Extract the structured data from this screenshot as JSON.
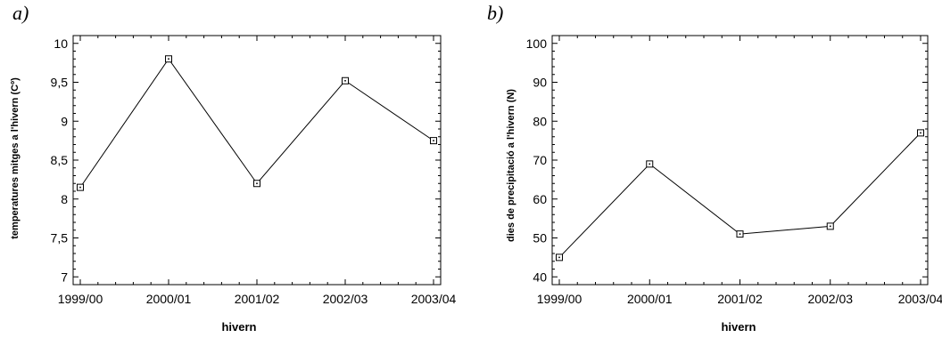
{
  "chart_data": [
    {
      "type": "line",
      "panel_label": "a)",
      "xlabel": "hivern",
      "ylabel": "temperatures mitges a l'hivern (Cº)",
      "categories": [
        "1999/00",
        "2000/01",
        "2001/02",
        "2002/03",
        "2003/04"
      ],
      "series": [
        {
          "values": [
            8.15,
            9.8,
            8.2,
            9.52,
            8.75
          ]
        }
      ],
      "ylim": [
        6.9,
        10.1
      ],
      "yticks": [
        7,
        7.5,
        8,
        8.5,
        9,
        9.5,
        10
      ],
      "ytick_labels": [
        "7",
        "7,5",
        "8",
        "8,5",
        "9",
        "9,5",
        "10"
      ],
      "marker": "square",
      "grid": false
    },
    {
      "type": "line",
      "panel_label": "b)",
      "xlabel": "hivern",
      "ylabel": "dies de precipitació a l'hivern (N)",
      "categories": [
        "1999/00",
        "2000/01",
        "2001/02",
        "2002/03",
        "2003/04"
      ],
      "series": [
        {
          "values": [
            45,
            69,
            51,
            53,
            77
          ]
        }
      ],
      "ylim": [
        38,
        102
      ],
      "yticks": [
        40,
        50,
        60,
        70,
        80,
        90,
        100
      ],
      "ytick_labels": [
        "40",
        "50",
        "60",
        "70",
        "80",
        "90",
        "100"
      ],
      "marker": "square",
      "grid": false
    }
  ]
}
